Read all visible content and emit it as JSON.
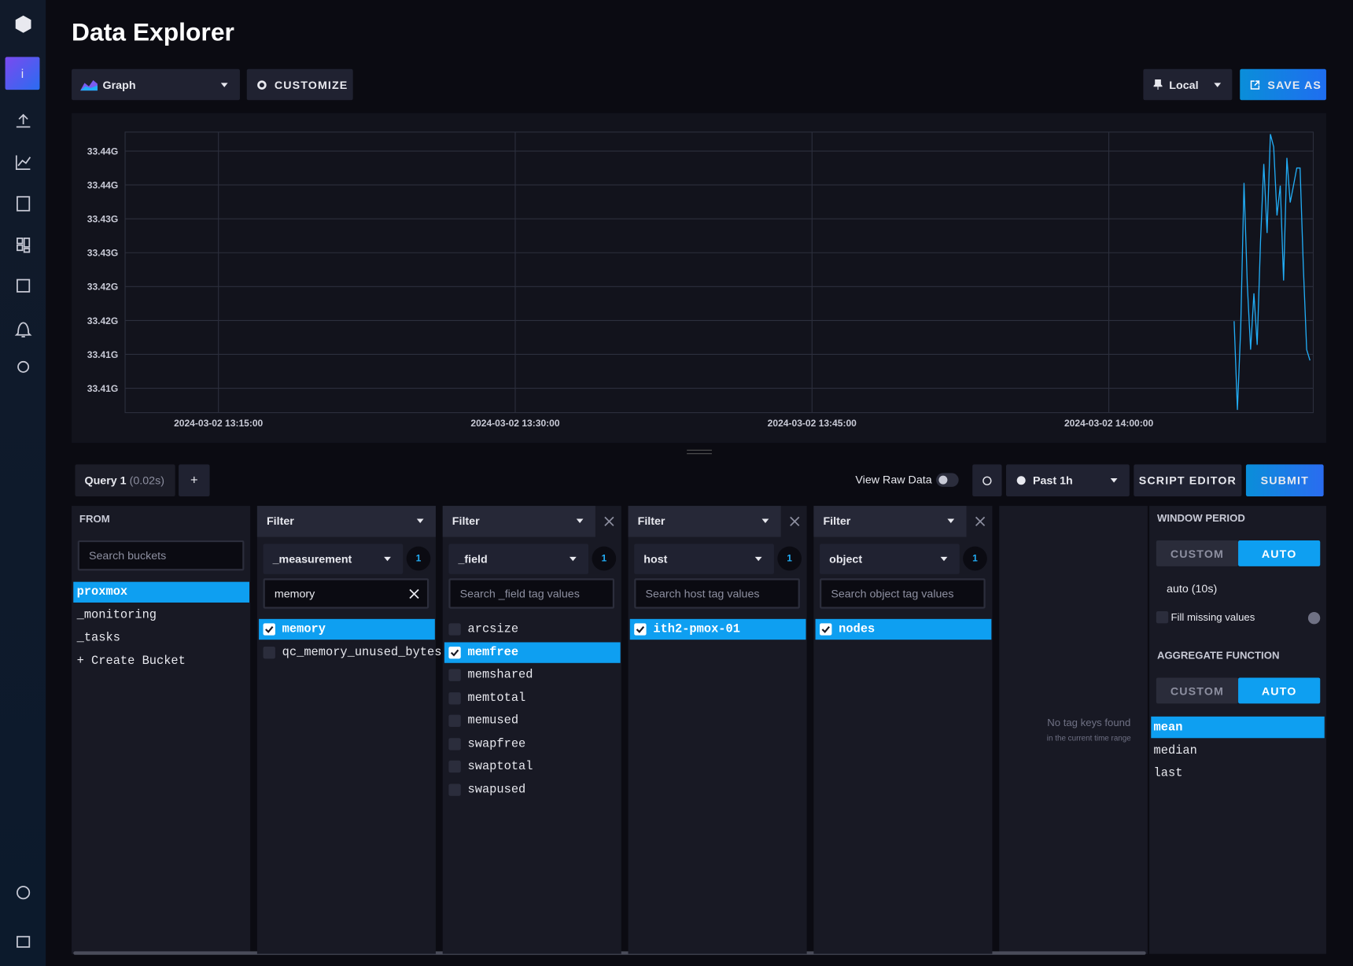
{
  "sidebar": {
    "avatar": "i"
  },
  "header": {
    "title": "Data Explorer"
  },
  "toolbar": {
    "view_type": "Graph",
    "customize": "CUSTOMIZE",
    "timezone": "Local",
    "save_as": "SAVE AS"
  },
  "chart_data": {
    "type": "line",
    "grid": true,
    "ylim": [
      33.4014,
      33.4428
    ],
    "yticks": [
      {
        "value": 33.44,
        "label": "33.44G"
      },
      {
        "value": 33.435,
        "label": "33.44G"
      },
      {
        "value": 33.43,
        "label": "33.43G"
      },
      {
        "value": 33.425,
        "label": "33.43G"
      },
      {
        "value": 33.42,
        "label": "33.42G"
      },
      {
        "value": 33.415,
        "label": "33.42G"
      },
      {
        "value": 33.41,
        "label": "33.41G"
      },
      {
        "value": 33.405,
        "label": "33.41G"
      }
    ],
    "xlim": [
      "2024-03-02 13:10:17",
      "2024-03-02 14:10:20"
    ],
    "xticks": [
      "2024-03-02 13:15:00",
      "2024-03-02 13:30:00",
      "2024-03-02 13:45:00",
      "2024-03-02 14:00:00"
    ],
    "x": [
      "2024-03-02 14:06:20",
      "2024-03-02 14:06:30",
      "2024-03-02 14:06:40",
      "2024-03-02 14:06:50",
      "2024-03-02 14:07:00",
      "2024-03-02 14:07:10",
      "2024-03-02 14:07:20",
      "2024-03-02 14:07:30",
      "2024-03-02 14:07:40",
      "2024-03-02 14:07:50",
      "2024-03-02 14:08:00",
      "2024-03-02 14:08:10",
      "2024-03-02 14:08:20",
      "2024-03-02 14:08:30",
      "2024-03-02 14:08:40",
      "2024-03-02 14:08:50",
      "2024-03-02 14:09:00",
      "2024-03-02 14:09:10",
      "2024-03-02 14:09:20",
      "2024-03-02 14:09:30",
      "2024-03-02 14:09:40",
      "2024-03-02 14:09:50",
      "2024-03-02 14:10:00",
      "2024-03-02 14:10:10"
    ],
    "series": [
      {
        "color": "#22adf6",
        "values": [
          33.4149,
          33.4018,
          33.4139,
          33.4353,
          33.4203,
          33.4107,
          33.419,
          33.4114,
          33.4266,
          33.4381,
          33.4279,
          33.4425,
          33.4406,
          33.4305,
          33.4349,
          33.4209,
          33.439,
          33.4324,
          33.4349,
          33.4375,
          33.4375,
          33.4228,
          33.4107,
          33.4091
        ]
      }
    ]
  },
  "query_bar": {
    "query_tab": "Query 1",
    "query_time": "(0.02s)",
    "add_query": "+",
    "view_raw": "View Raw Data",
    "time_range": "Past 1h",
    "script_editor": "SCRIPT EDITOR",
    "submit": "SUBMIT"
  },
  "from": {
    "title": "FROM",
    "search_placeholder": "Search buckets",
    "buckets": [
      {
        "name": "proxmox",
        "selected": true
      },
      {
        "name": "_monitoring",
        "selected": false
      },
      {
        "name": "_tasks",
        "selected": false
      }
    ],
    "create": "+ Create Bucket"
  },
  "filters": [
    {
      "label": "Filter",
      "key": "_measurement",
      "count": 1,
      "search_value": "memory",
      "closable": false,
      "values": [
        {
          "name": "memory",
          "checked": true
        },
        {
          "name": "qc_memory_unused_bytes",
          "checked": false
        }
      ]
    },
    {
      "label": "Filter",
      "key": "_field",
      "count": 1,
      "search_placeholder": "Search _field tag values",
      "closable": true,
      "values": [
        {
          "name": "arcsize",
          "checked": false
        },
        {
          "name": "memfree",
          "checked": true
        },
        {
          "name": "memshared",
          "checked": false
        },
        {
          "name": "memtotal",
          "checked": false
        },
        {
          "name": "memused",
          "checked": false
        },
        {
          "name": "swapfree",
          "checked": false
        },
        {
          "name": "swaptotal",
          "checked": false
        },
        {
          "name": "swapused",
          "checked": false
        }
      ]
    },
    {
      "label": "Filter",
      "key": "host",
      "count": 1,
      "search_placeholder": "Search host tag values",
      "closable": true,
      "values": [
        {
          "name": "ith2-pmox-01",
          "checked": true
        }
      ]
    },
    {
      "label": "Filter",
      "key": "object",
      "count": 1,
      "search_placeholder": "Search object tag values",
      "closable": true,
      "values": [
        {
          "name": "nodes",
          "checked": true
        }
      ]
    }
  ],
  "empty_panel": {
    "message": "No tag keys found",
    "sub": "in the current time range"
  },
  "aggregate": {
    "window_title": "WINDOW PERIOD",
    "custom": "CUSTOM",
    "auto": "AUTO",
    "window_value": "auto (10s)",
    "fill_missing": "Fill missing values",
    "function_title": "AGGREGATE FUNCTION",
    "functions": [
      {
        "name": "mean",
        "selected": true
      },
      {
        "name": "median",
        "selected": false
      },
      {
        "name": "last",
        "selected": false
      }
    ]
  }
}
